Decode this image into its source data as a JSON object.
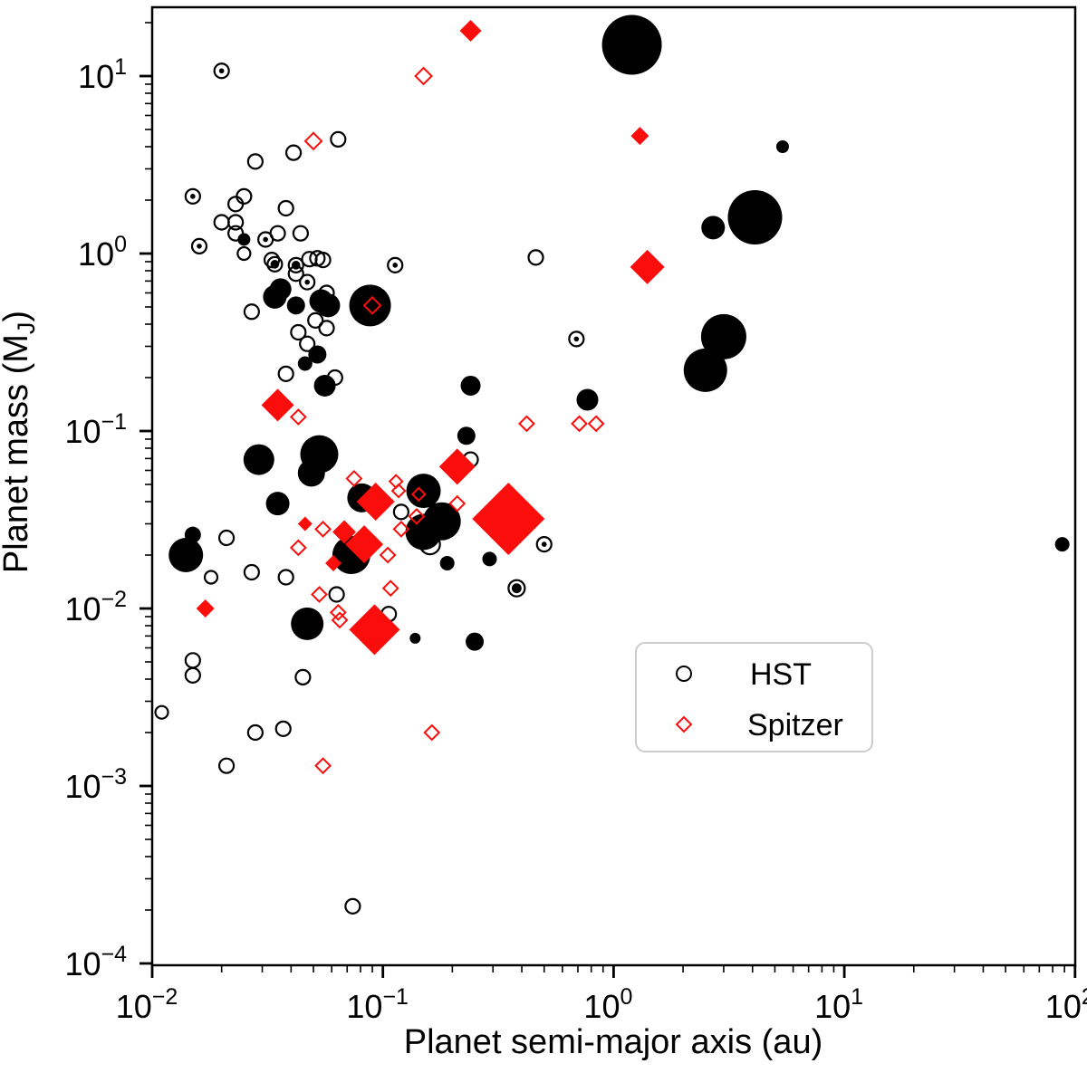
{
  "chart_data": {
    "type": "scatter",
    "title": "",
    "x_axis": {
      "label": "Planet semi-major axis (au)",
      "scale": "log",
      "range": [
        0.01,
        100
      ],
      "tick_exponents": [
        -2,
        -1,
        0,
        1,
        2
      ]
    },
    "y_axis": {
      "label_prefix": "Planet mass (M",
      "label_sub": "J",
      "label_suffix": ")",
      "scale": "log",
      "range": [
        0.0001,
        24
      ],
      "tick_exponents": [
        1,
        0,
        -1,
        -2,
        -3,
        -4
      ]
    },
    "legend": {
      "position": "lower right",
      "items": [
        {
          "label": "HST",
          "marker": "circle",
          "color": "#000000"
        },
        {
          "label": "Spitzer",
          "marker": "diamond",
          "color": "#fa0d0a"
        }
      ]
    },
    "colors": {
      "hst": "#000000",
      "spitzer": "#fa0d0a",
      "legend_border": "#cccccc"
    },
    "point_format": "[semi_major_axis_au, planet_mass_mj, marker_size_px, style] style: o=open f=filled d=open-with-dot b=filled-dot-in-ring",
    "series": [
      {
        "name": "HST",
        "marker": "circle",
        "color": "#000000",
        "points": [
          [
            0.02,
            10.7,
            8,
            "d"
          ],
          [
            0.028,
            3.3,
            8,
            "o"
          ],
          [
            0.041,
            3.7,
            8,
            "o"
          ],
          [
            0.064,
            4.4,
            8,
            "o"
          ],
          [
            0.015,
            2.1,
            8,
            "d"
          ],
          [
            0.023,
            1.9,
            8,
            "o"
          ],
          [
            0.025,
            2.1,
            8,
            "o"
          ],
          [
            0.038,
            1.8,
            8,
            "o"
          ],
          [
            0.02,
            1.5,
            8,
            "o"
          ],
          [
            0.023,
            1.5,
            8,
            "o"
          ],
          [
            0.023,
            1.3,
            8,
            "o"
          ],
          [
            0.016,
            1.1,
            8,
            "d"
          ],
          [
            0.025,
            1.2,
            7,
            "f"
          ],
          [
            0.025,
            1.0,
            7,
            "o"
          ],
          [
            0.031,
            1.2,
            8,
            "d"
          ],
          [
            0.035,
            1.3,
            8,
            "o"
          ],
          [
            0.044,
            1.3,
            8,
            "o"
          ],
          [
            0.033,
            0.92,
            8,
            "o"
          ],
          [
            0.034,
            0.87,
            8,
            "b"
          ],
          [
            0.042,
            0.86,
            8,
            "b"
          ],
          [
            0.048,
            0.93,
            8,
            "o"
          ],
          [
            0.052,
            0.94,
            8,
            "o"
          ],
          [
            0.055,
            0.92,
            8,
            "o"
          ],
          [
            0.042,
            0.77,
            8,
            "o"
          ],
          [
            0.047,
            0.69,
            8,
            "d"
          ],
          [
            0.113,
            0.86,
            8,
            "d"
          ],
          [
            0.036,
            0.63,
            12,
            "f"
          ],
          [
            0.034,
            0.57,
            13,
            "f"
          ],
          [
            0.042,
            0.51,
            10,
            "f"
          ],
          [
            0.054,
            0.54,
            13,
            "f"
          ],
          [
            0.058,
            0.51,
            13,
            "f"
          ],
          [
            0.057,
            0.6,
            8,
            "o"
          ],
          [
            0.027,
            0.47,
            8,
            "o"
          ],
          [
            0.051,
            0.42,
            8,
            "o"
          ],
          [
            0.057,
            0.38,
            8,
            "o"
          ],
          [
            0.043,
            0.36,
            8,
            "o"
          ],
          [
            0.088,
            0.51,
            23,
            "f"
          ],
          [
            0.047,
            0.31,
            8,
            "o"
          ],
          [
            0.052,
            0.27,
            10,
            "f"
          ],
          [
            0.046,
            0.24,
            8,
            "f"
          ],
          [
            0.038,
            0.21,
            8,
            "o"
          ],
          [
            0.056,
            0.18,
            12,
            "f"
          ],
          [
            0.062,
            0.2,
            8,
            "o"
          ],
          [
            0.69,
            0.33,
            8,
            "d"
          ],
          [
            0.46,
            0.95,
            8,
            "o"
          ],
          [
            0.77,
            0.15,
            12,
            "f"
          ],
          [
            0.24,
            0.18,
            11,
            "f"
          ],
          [
            0.23,
            0.094,
            10,
            "f"
          ],
          [
            3.0,
            0.34,
            25,
            "f"
          ],
          [
            2.5,
            0.22,
            24,
            "f"
          ],
          [
            2.7,
            1.4,
            13,
            "f"
          ],
          [
            4.1,
            1.6,
            30,
            "f"
          ],
          [
            5.4,
            4.0,
            7,
            "f"
          ],
          [
            1.2,
            15,
            33,
            "f"
          ],
          [
            88,
            0.023,
            8,
            "f"
          ],
          [
            0.029,
            0.069,
            17,
            "f"
          ],
          [
            0.053,
            0.074,
            21,
            "f"
          ],
          [
            0.049,
            0.058,
            15,
            "f"
          ],
          [
            0.035,
            0.039,
            13,
            "f"
          ],
          [
            0.015,
            0.026,
            9,
            "f"
          ],
          [
            0.014,
            0.02,
            19,
            "f"
          ],
          [
            0.021,
            0.025,
            8,
            "o"
          ],
          [
            0.018,
            0.015,
            7,
            "o"
          ],
          [
            0.027,
            0.016,
            8,
            "o"
          ],
          [
            0.038,
            0.015,
            8,
            "o"
          ],
          [
            0.047,
            0.0082,
            18,
            "f"
          ],
          [
            0.073,
            0.02,
            21,
            "f"
          ],
          [
            0.063,
            0.012,
            8,
            "o"
          ],
          [
            0.106,
            0.0093,
            8,
            "o"
          ],
          [
            0.138,
            0.0068,
            6,
            "f"
          ],
          [
            0.19,
            0.018,
            8,
            "f"
          ],
          [
            0.29,
            0.019,
            8,
            "f"
          ],
          [
            0.5,
            0.023,
            8,
            "d"
          ],
          [
            0.38,
            0.013,
            9,
            "b"
          ],
          [
            0.25,
            0.0065,
            10,
            "f"
          ],
          [
            0.15,
            0.046,
            19,
            "f"
          ],
          [
            0.18,
            0.031,
            21,
            "f"
          ],
          [
            0.15,
            0.027,
            20,
            "f"
          ],
          [
            0.24,
            0.069,
            8,
            "o"
          ],
          [
            0.16,
            0.023,
            11,
            "o"
          ],
          [
            0.12,
            0.035,
            8,
            "o"
          ],
          [
            0.081,
            0.042,
            16,
            "f"
          ],
          [
            0.015,
            0.0051,
            8,
            "o"
          ],
          [
            0.015,
            0.0042,
            8,
            "o"
          ],
          [
            0.045,
            0.0041,
            8,
            "o"
          ],
          [
            0.011,
            0.0026,
            7,
            "o"
          ],
          [
            0.028,
            0.002,
            8,
            "o"
          ],
          [
            0.037,
            0.0021,
            8,
            "o"
          ],
          [
            0.021,
            0.0013,
            8,
            "o"
          ],
          [
            0.074,
            0.00021,
            8,
            "o"
          ]
        ]
      },
      {
        "name": "Spitzer",
        "marker": "diamond",
        "color": "#fa0d0a",
        "points": [
          [
            0.24,
            18,
            12,
            "f"
          ],
          [
            0.15,
            10,
            9,
            "o"
          ],
          [
            1.3,
            4.6,
            10,
            "f"
          ],
          [
            0.05,
            4.3,
            9,
            "o"
          ],
          [
            1.4,
            0.84,
            19,
            "f"
          ],
          [
            0.035,
            0.14,
            18,
            "f"
          ],
          [
            0.09,
            0.51,
            9,
            "o"
          ],
          [
            0.043,
            0.12,
            8,
            "o"
          ],
          [
            0.42,
            0.11,
            8,
            "o"
          ],
          [
            0.71,
            0.11,
            8,
            "o"
          ],
          [
            0.84,
            0.11,
            8,
            "o"
          ],
          [
            0.075,
            0.054,
            8,
            "o"
          ],
          [
            0.114,
            0.052,
            7,
            "o"
          ],
          [
            0.117,
            0.046,
            7,
            "o"
          ],
          [
            0.143,
            0.044,
            7,
            "o"
          ],
          [
            0.21,
            0.063,
            20,
            "f"
          ],
          [
            0.093,
            0.04,
            21,
            "f"
          ],
          [
            0.21,
            0.039,
            8,
            "o"
          ],
          [
            0.14,
            0.033,
            8,
            "o"
          ],
          [
            0.12,
            0.028,
            8,
            "o"
          ],
          [
            0.046,
            0.03,
            8,
            "f"
          ],
          [
            0.055,
            0.028,
            8,
            "o"
          ],
          [
            0.068,
            0.027,
            13,
            "f"
          ],
          [
            0.083,
            0.023,
            21,
            "f"
          ],
          [
            0.105,
            0.02,
            8,
            "o"
          ],
          [
            0.061,
            0.018,
            9,
            "f"
          ],
          [
            0.043,
            0.022,
            8,
            "o"
          ],
          [
            0.35,
            0.032,
            40,
            "f"
          ],
          [
            0.092,
            0.0076,
            28,
            "f"
          ],
          [
            0.053,
            0.012,
            8,
            "o"
          ],
          [
            0.064,
            0.0095,
            8,
            "o"
          ],
          [
            0.065,
            0.0086,
            8,
            "o"
          ],
          [
            0.108,
            0.013,
            8,
            "o"
          ],
          [
            0.055,
            0.0013,
            8,
            "o"
          ],
          [
            0.163,
            0.002,
            8,
            "o"
          ],
          [
            0.017,
            0.01,
            10,
            "f"
          ]
        ]
      }
    ]
  }
}
